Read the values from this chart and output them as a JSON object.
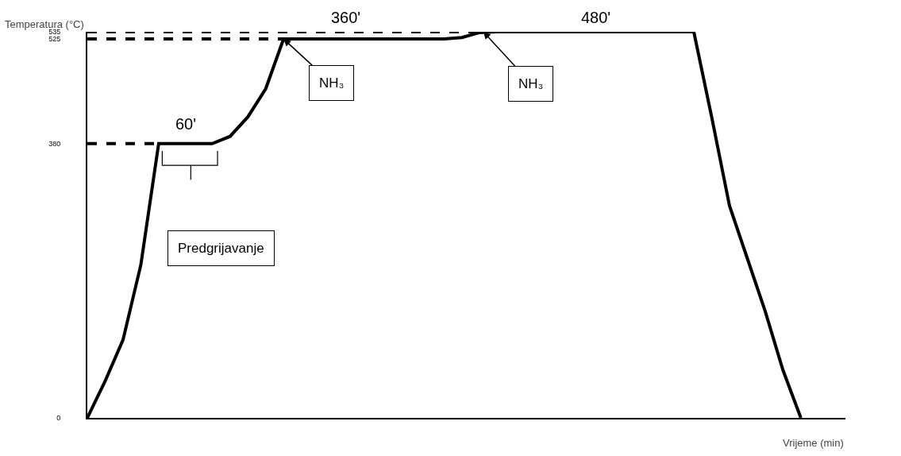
{
  "chart_data": {
    "type": "line",
    "xlabel": "Vrijeme (min)",
    "ylabel": "Temperatura (°C)",
    "categories": [
      null,
      null,
      null,
      null,
      null,
      null,
      null,
      null,
      null,
      null,
      null,
      null,
      null,
      null,
      null,
      null,
      null,
      null,
      null,
      null,
      null,
      null,
      null,
      null,
      null,
      null,
      null,
      null,
      null,
      null,
      null,
      null,
      null,
      null,
      null,
      null,
      null,
      null,
      null,
      null,
      null
    ],
    "series": [
      {
        "color": "#000000",
        "line_style": "solid",
        "values": [
          0,
          51,
          108,
          212,
          380,
          380,
          380,
          380,
          390,
          417,
          456,
          525,
          525,
          525,
          525,
          525,
          525,
          525,
          525,
          525,
          525,
          527,
          534,
          535,
          535,
          535,
          535,
          535,
          535,
          535,
          535,
          535,
          535,
          535,
          535,
          417,
          294,
          221,
          148,
          66,
          0
        ]
      },
      {
        "color": "#000000",
        "line_style": "dashed",
        "values": [
          380,
          380,
          380,
          380,
          380,
          null,
          null,
          null,
          null,
          null,
          null,
          null,
          null,
          null,
          null,
          null,
          null,
          null,
          null,
          null,
          null,
          null,
          null,
          null,
          null,
          null,
          null,
          null,
          null,
          null,
          null,
          null,
          null,
          null,
          null,
          null,
          null,
          null,
          null,
          null,
          null
        ]
      },
      {
        "color": "#000000",
        "line_style": "dashed",
        "values": [
          525,
          525,
          525,
          525,
          525,
          525,
          525,
          525,
          525,
          525,
          525,
          525,
          null,
          null,
          null,
          null,
          null,
          null,
          null,
          null,
          null,
          null,
          null,
          null,
          null,
          null,
          null,
          null,
          null,
          null,
          null,
          null,
          null,
          null,
          null,
          null,
          null,
          null,
          null,
          null,
          null
        ]
      },
      {
        "color": "#000000",
        "line_style": "dashed",
        "values": [
          535,
          535,
          535,
          535,
          535,
          535,
          535,
          535,
          535,
          535,
          535,
          535,
          535,
          535,
          535,
          535,
          535,
          535,
          535,
          535,
          535,
          535,
          535,
          null,
          null,
          null,
          null,
          null,
          null,
          null,
          null,
          null,
          null,
          null,
          null,
          null,
          null,
          null,
          null,
          null,
          null
        ]
      }
    ],
    "ylim": [
      0,
      535
    ],
    "yticks": [
      0,
      380,
      525,
      535
    ],
    "annotations": [
      "60'",
      "360'",
      "480'",
      "NH₃",
      "NH₃",
      "Predgrijavanje"
    ],
    "tick_labels": "y",
    "marker": "none"
  }
}
